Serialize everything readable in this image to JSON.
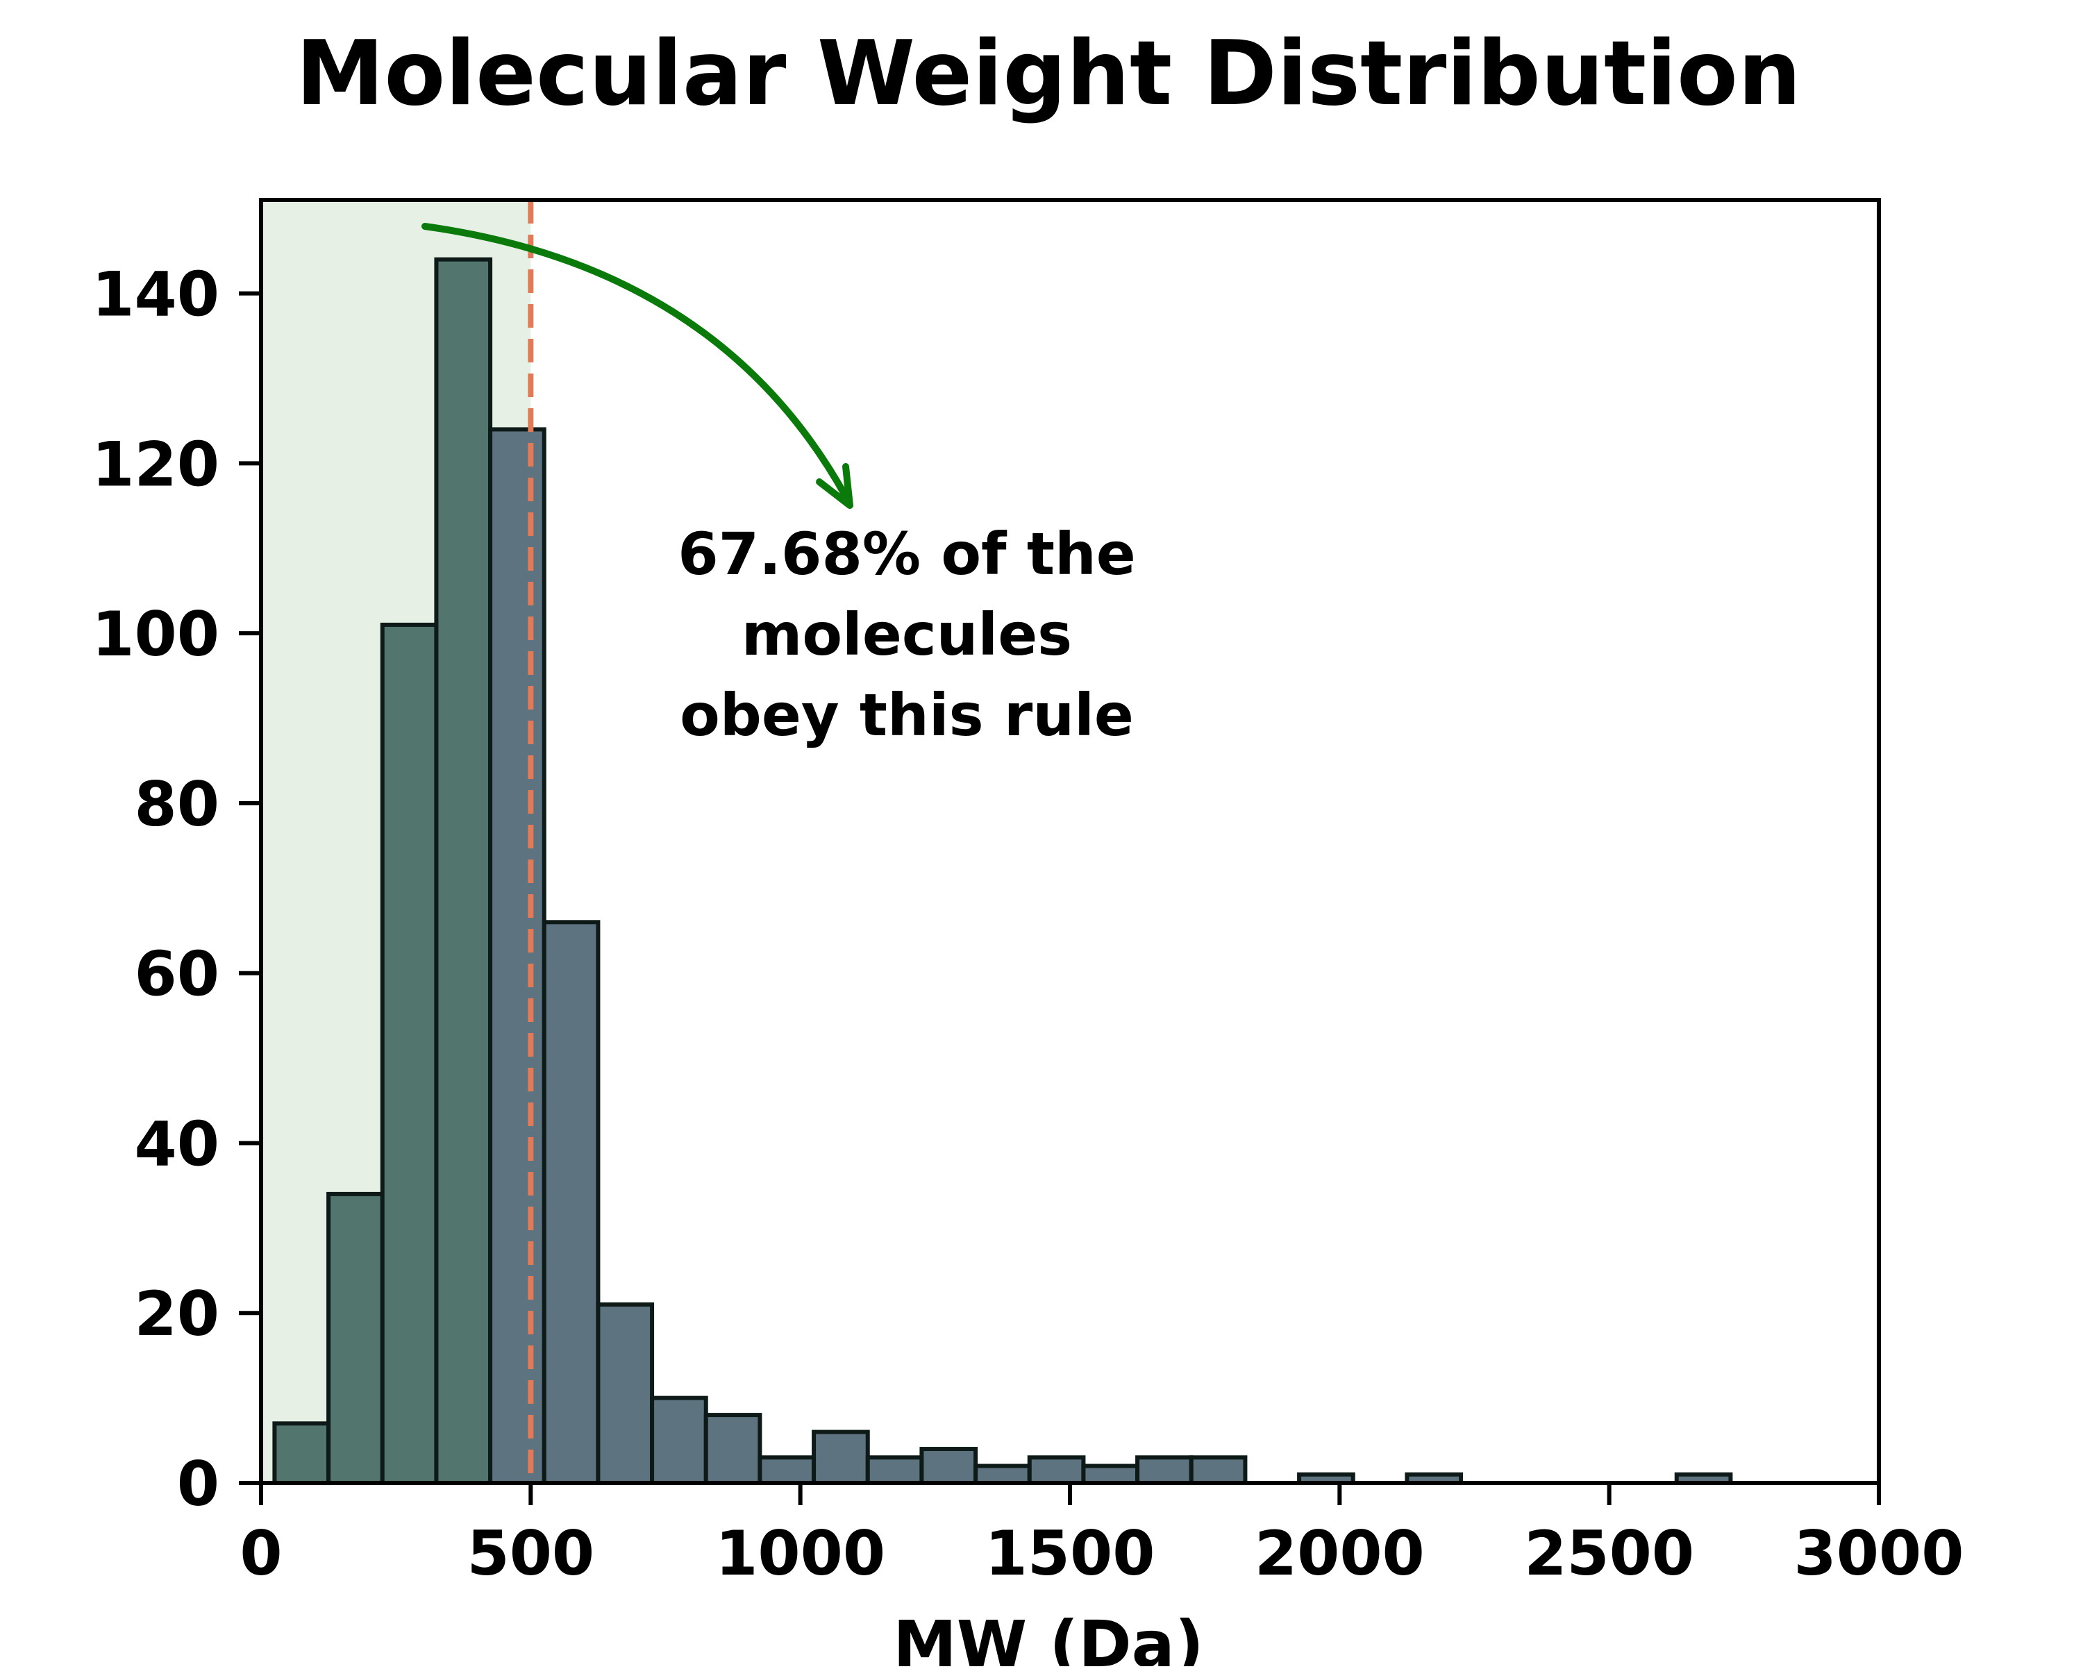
{
  "chart_data": {
    "type": "bar",
    "title": "Molecular Weight Distribution",
    "xlabel": "MW (Da)",
    "ylabel": "",
    "xlim": [
      0,
      3000
    ],
    "ylim": [
      0,
      151
    ],
    "xticks": [
      0,
      500,
      1000,
      1500,
      2000,
      2500,
      3000
    ],
    "yticks": [
      0,
      20,
      40,
      60,
      80,
      100,
      120,
      140
    ],
    "threshold": 500,
    "annotation": [
      "67.68% of the",
      "molecules",
      "obey this rule"
    ],
    "bin_width": 100,
    "bins": [
      {
        "start": 25,
        "count": 7
      },
      {
        "start": 125,
        "count": 34
      },
      {
        "start": 225,
        "count": 101
      },
      {
        "start": 325,
        "count": 144
      },
      {
        "start": 425,
        "count": 124
      },
      {
        "start": 525,
        "count": 66
      },
      {
        "start": 625,
        "count": 21
      },
      {
        "start": 725,
        "count": 10
      },
      {
        "start": 825,
        "count": 8
      },
      {
        "start": 925,
        "count": 3
      },
      {
        "start": 1025,
        "count": 6
      },
      {
        "start": 1125,
        "count": 3
      },
      {
        "start": 1225,
        "count": 4
      },
      {
        "start": 1325,
        "count": 2
      },
      {
        "start": 1425,
        "count": 3
      },
      {
        "start": 1525,
        "count": 2
      },
      {
        "start": 1625,
        "count": 3
      },
      {
        "start": 1725,
        "count": 3
      },
      {
        "start": 1925,
        "count": 1
      },
      {
        "start": 2125,
        "count": 1
      },
      {
        "start": 2625,
        "count": 1
      }
    ],
    "colors": {
      "bar_pass": "#52756e",
      "bar_fail": "#5d7480",
      "bar_edge": "#0d1a17",
      "pass_region": "#e6f0e4",
      "threshold_line": "#e07b59",
      "arrow": "#0a7a0a"
    },
    "grid": false,
    "legend": "none"
  }
}
